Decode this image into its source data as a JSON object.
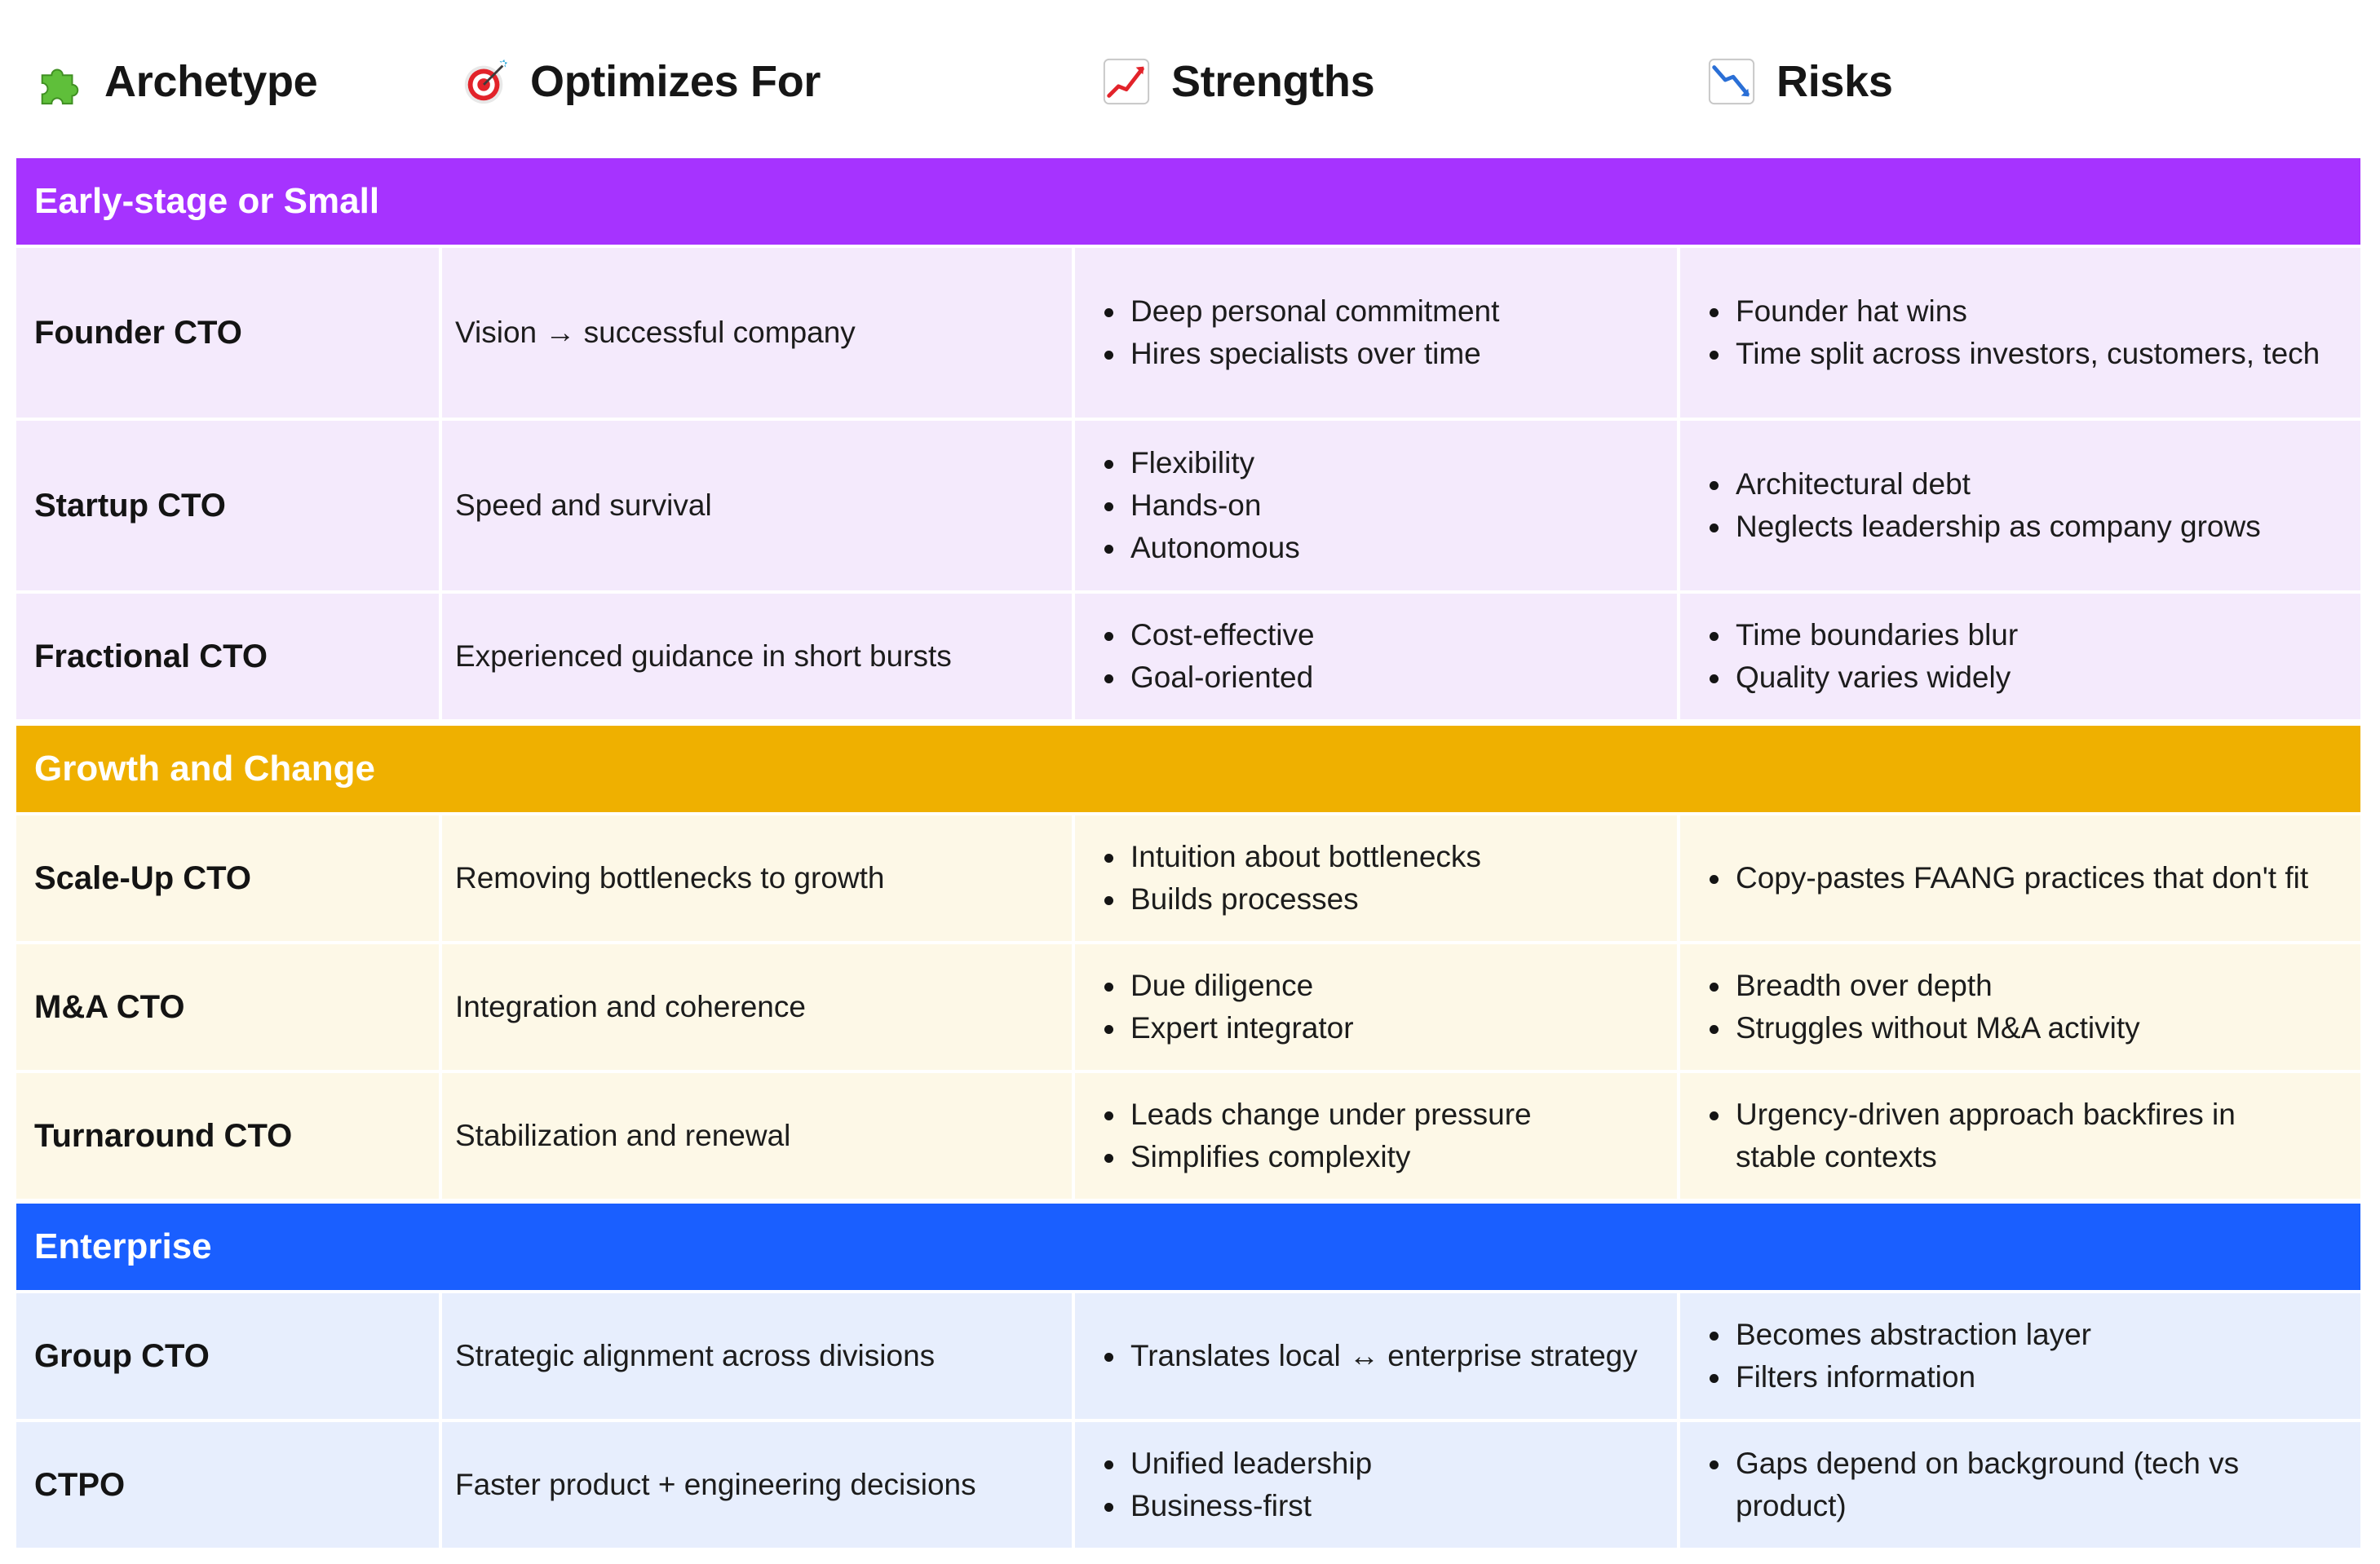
{
  "headers": {
    "archetype": {
      "label": "Archetype",
      "icon": "puzzle-icon"
    },
    "optimizes": {
      "label": "Optimizes For",
      "icon": "target-icon"
    },
    "strengths": {
      "label": "Strengths",
      "icon": "chart-increasing-icon"
    },
    "risks": {
      "label": "Risks",
      "icon": "chart-decreasing-icon"
    }
  },
  "colors": {
    "section_early": "#a633ff",
    "row_early": "#f4eafc",
    "section_growth": "#efb000",
    "row_growth": "#fdf8e7",
    "section_enterprise": "#1a5fff",
    "row_enterprise": "#e7eefd"
  },
  "sections": [
    {
      "title": "Early-stage or Small",
      "rows": [
        {
          "archetype": "Founder CTO",
          "optimizes": "Vision → successful company",
          "strengths": [
            "Deep personal commitment",
            "Hires specialists over time"
          ],
          "risks": [
            "Founder hat wins",
            "Time split across investors, customers, tech"
          ]
        },
        {
          "archetype": "Startup CTO",
          "optimizes": "Speed and survival",
          "strengths": [
            "Flexibility",
            "Hands-on",
            "Autonomous"
          ],
          "risks": [
            "Architectural debt",
            "Neglects leadership as company grows"
          ]
        },
        {
          "archetype": "Fractional CTO",
          "optimizes": "Experienced guidance in short bursts",
          "strengths": [
            "Cost-effective",
            "Goal-oriented"
          ],
          "risks": [
            "Time boundaries blur",
            "Quality varies widely"
          ]
        }
      ]
    },
    {
      "title": "Growth and Change",
      "rows": [
        {
          "archetype": "Scale-Up CTO",
          "optimizes": "Removing bottlenecks to growth",
          "strengths": [
            "Intuition about bottlenecks",
            "Builds processes"
          ],
          "risks": [
            "Copy-pastes FAANG practices that don't fit"
          ]
        },
        {
          "archetype": "M&A CTO",
          "optimizes": "Integration and coherence",
          "strengths": [
            "Due diligence",
            "Expert integrator"
          ],
          "risks": [
            "Breadth over depth",
            "Struggles without M&A activity"
          ]
        },
        {
          "archetype": "Turnaround CTO",
          "optimizes": "Stabilization and renewal",
          "strengths": [
            "Leads change under pressure",
            "Simplifies complexity"
          ],
          "risks": [
            "Urgency-driven approach backfires in stable contexts"
          ]
        }
      ]
    },
    {
      "title": "Enterprise",
      "rows": [
        {
          "archetype": "Group CTO",
          "optimizes": "Strategic alignment across divisions",
          "strengths": [
            "Translates local ↔ enterprise strategy"
          ],
          "risks": [
            "Becomes abstraction layer",
            "Filters information"
          ]
        },
        {
          "archetype": "CTPO",
          "optimizes": "Faster product + engineering decisions",
          "strengths": [
            "Unified leadership",
            "Business-first"
          ],
          "risks": [
            "Gaps depend on background (tech vs product)"
          ]
        }
      ]
    }
  ]
}
